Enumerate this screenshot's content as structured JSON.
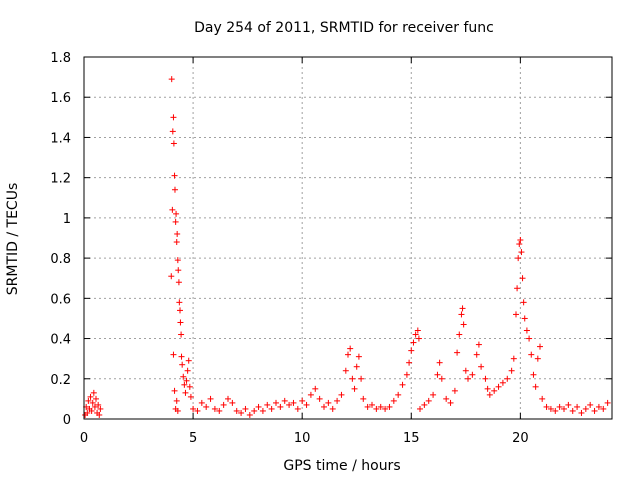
{
  "chart_data": {
    "type": "scatter",
    "title": "Day 254 of 2011, SRMTID for receiver func",
    "xlabel": "GPS time / hours",
    "ylabel": "SRMTID / TECUs",
    "xlim": [
      0,
      24.2
    ],
    "ylim": [
      0,
      1.8
    ],
    "xticks": [
      0,
      5,
      10,
      15,
      20
    ],
    "xtick_labels": [
      "0",
      "5",
      "10",
      "15",
      "20"
    ],
    "yticks": [
      0,
      0.2,
      0.4,
      0.6,
      0.8,
      1.0,
      1.2,
      1.4,
      1.6,
      1.8
    ],
    "ytick_labels": [
      "0",
      "0.2",
      "0.4",
      "0.6",
      "0.8",
      "1",
      "1.2",
      "1.4",
      "1.6",
      "1.8"
    ],
    "grid": true,
    "marker": "plus",
    "color": "#ff0000",
    "series": [
      {
        "name": "SRMTID",
        "points": [
          [
            0.05,
            0.02
          ],
          [
            0.1,
            0.06
          ],
          [
            0.15,
            0.03
          ],
          [
            0.2,
            0.09
          ],
          [
            0.25,
            0.05
          ],
          [
            0.3,
            0.11
          ],
          [
            0.35,
            0.04
          ],
          [
            0.4,
            0.08
          ],
          [
            0.45,
            0.13
          ],
          [
            0.5,
            0.06
          ],
          [
            0.55,
            0.1
          ],
          [
            0.6,
            0.03
          ],
          [
            0.65,
            0.07
          ],
          [
            0.7,
            0.02
          ],
          [
            0.75,
            0.05
          ],
          [
            4.0,
            0.71
          ],
          [
            4.02,
            1.69
          ],
          [
            4.05,
            1.04
          ],
          [
            4.07,
            1.43
          ],
          [
            4.1,
            1.5
          ],
          [
            4.12,
            1.37
          ],
          [
            4.15,
            1.21
          ],
          [
            4.17,
            1.14
          ],
          [
            4.2,
            0.98
          ],
          [
            4.22,
            1.02
          ],
          [
            4.25,
            0.88
          ],
          [
            4.27,
            0.92
          ],
          [
            4.3,
            0.79
          ],
          [
            4.32,
            0.74
          ],
          [
            4.35,
            0.68
          ],
          [
            4.37,
            0.58
          ],
          [
            4.4,
            0.54
          ],
          [
            4.42,
            0.48
          ],
          [
            4.45,
            0.42
          ],
          [
            4.47,
            0.31
          ],
          [
            4.5,
            0.27
          ],
          [
            4.55,
            0.21
          ],
          [
            4.6,
            0.17
          ],
          [
            4.65,
            0.13
          ],
          [
            4.7,
            0.19
          ],
          [
            4.75,
            0.24
          ],
          [
            4.8,
            0.29
          ],
          [
            4.85,
            0.16
          ],
          [
            4.9,
            0.11
          ],
          [
            4.1,
            0.32
          ],
          [
            4.15,
            0.14
          ],
          [
            4.2,
            0.05
          ],
          [
            4.25,
            0.09
          ],
          [
            4.3,
            0.04
          ],
          [
            5.0,
            0.05
          ],
          [
            5.2,
            0.04
          ],
          [
            5.4,
            0.08
          ],
          [
            5.6,
            0.06
          ],
          [
            5.8,
            0.1
          ],
          [
            6.0,
            0.05
          ],
          [
            6.2,
            0.04
          ],
          [
            6.4,
            0.07
          ],
          [
            6.6,
            0.1
          ],
          [
            6.8,
            0.08
          ],
          [
            7.0,
            0.04
          ],
          [
            7.2,
            0.03
          ],
          [
            7.4,
            0.05
          ],
          [
            7.6,
            0.02
          ],
          [
            7.8,
            0.04
          ],
          [
            8.0,
            0.06
          ],
          [
            8.2,
            0.04
          ],
          [
            8.4,
            0.07
          ],
          [
            8.6,
            0.05
          ],
          [
            8.8,
            0.08
          ],
          [
            9.0,
            0.06
          ],
          [
            9.2,
            0.09
          ],
          [
            9.4,
            0.07
          ],
          [
            9.6,
            0.08
          ],
          [
            9.8,
            0.05
          ],
          [
            10.0,
            0.09
          ],
          [
            10.2,
            0.07
          ],
          [
            10.4,
            0.12
          ],
          [
            10.6,
            0.15
          ],
          [
            10.8,
            0.1
          ],
          [
            11.0,
            0.06
          ],
          [
            11.2,
            0.08
          ],
          [
            11.4,
            0.05
          ],
          [
            11.6,
            0.09
          ],
          [
            11.8,
            0.12
          ],
          [
            12.0,
            0.24
          ],
          [
            12.1,
            0.32
          ],
          [
            12.2,
            0.35
          ],
          [
            12.3,
            0.2
          ],
          [
            12.4,
            0.15
          ],
          [
            12.5,
            0.26
          ],
          [
            12.6,
            0.31
          ],
          [
            12.7,
            0.2
          ],
          [
            12.8,
            0.1
          ],
          [
            13.0,
            0.06
          ],
          [
            13.2,
            0.07
          ],
          [
            13.4,
            0.05
          ],
          [
            13.6,
            0.06
          ],
          [
            13.8,
            0.05
          ],
          [
            14.0,
            0.06
          ],
          [
            14.2,
            0.09
          ],
          [
            14.4,
            0.12
          ],
          [
            14.6,
            0.17
          ],
          [
            14.8,
            0.22
          ],
          [
            14.9,
            0.28
          ],
          [
            15.0,
            0.34
          ],
          [
            15.1,
            0.38
          ],
          [
            15.2,
            0.42
          ],
          [
            15.3,
            0.44
          ],
          [
            15.35,
            0.4
          ],
          [
            15.4,
            0.05
          ],
          [
            15.6,
            0.07
          ],
          [
            15.8,
            0.09
          ],
          [
            16.0,
            0.12
          ],
          [
            16.2,
            0.22
          ],
          [
            16.3,
            0.28
          ],
          [
            16.4,
            0.2
          ],
          [
            16.6,
            0.1
          ],
          [
            16.8,
            0.08
          ],
          [
            17.0,
            0.14
          ],
          [
            17.1,
            0.33
          ],
          [
            17.2,
            0.42
          ],
          [
            17.3,
            0.52
          ],
          [
            17.35,
            0.55
          ],
          [
            17.4,
            0.47
          ],
          [
            17.5,
            0.24
          ],
          [
            17.6,
            0.2
          ],
          [
            17.8,
            0.22
          ],
          [
            18.0,
            0.32
          ],
          [
            18.1,
            0.37
          ],
          [
            18.2,
            0.26
          ],
          [
            18.4,
            0.2
          ],
          [
            18.5,
            0.15
          ],
          [
            18.6,
            0.12
          ],
          [
            18.8,
            0.14
          ],
          [
            19.0,
            0.16
          ],
          [
            19.2,
            0.18
          ],
          [
            19.4,
            0.2
          ],
          [
            19.6,
            0.24
          ],
          [
            19.7,
            0.3
          ],
          [
            19.8,
            0.52
          ],
          [
            19.85,
            0.65
          ],
          [
            19.9,
            0.8
          ],
          [
            19.95,
            0.87
          ],
          [
            20.0,
            0.89
          ],
          [
            20.05,
            0.83
          ],
          [
            20.1,
            0.7
          ],
          [
            20.15,
            0.58
          ],
          [
            20.2,
            0.5
          ],
          [
            20.3,
            0.44
          ],
          [
            20.4,
            0.4
          ],
          [
            20.5,
            0.32
          ],
          [
            20.6,
            0.22
          ],
          [
            20.7,
            0.16
          ],
          [
            20.8,
            0.3
          ],
          [
            20.9,
            0.36
          ],
          [
            21.0,
            0.1
          ],
          [
            21.2,
            0.06
          ],
          [
            21.4,
            0.05
          ],
          [
            21.6,
            0.04
          ],
          [
            21.8,
            0.06
          ],
          [
            22.0,
            0.05
          ],
          [
            22.2,
            0.07
          ],
          [
            22.4,
            0.04
          ],
          [
            22.6,
            0.06
          ],
          [
            22.8,
            0.03
          ],
          [
            23.0,
            0.05
          ],
          [
            23.2,
            0.07
          ],
          [
            23.4,
            0.04
          ],
          [
            23.6,
            0.06
          ],
          [
            23.8,
            0.05
          ],
          [
            24.0,
            0.08
          ]
        ]
      }
    ]
  }
}
